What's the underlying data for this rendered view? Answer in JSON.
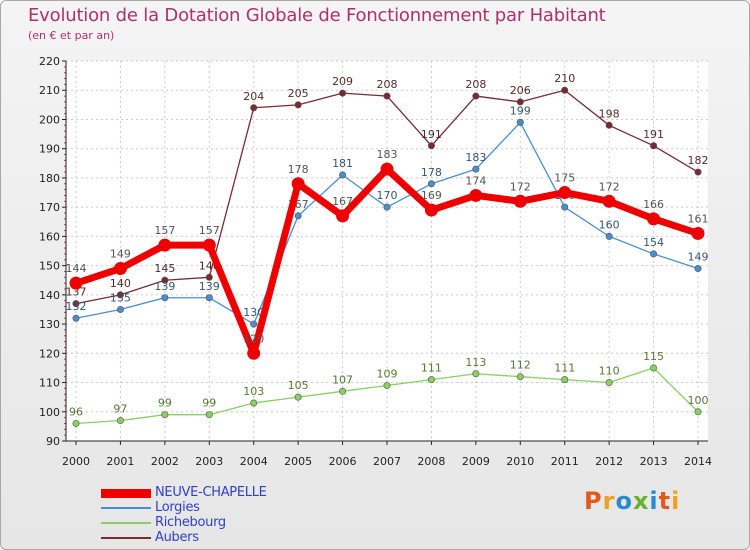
{
  "title": "Evolution de la Dotation Globale de Fonctionnement par Habitant",
  "subtitle": "(en € et par an)",
  "logo": {
    "text": "Proxiti",
    "colors": [
      "#e05a1a",
      "#f0a020",
      "#2a8ad0",
      "#6ab030",
      "#2a8ad0",
      "#e05a1a",
      "#f0a020"
    ]
  },
  "chart_data": {
    "type": "line",
    "x": [
      "2000",
      "2001",
      "2002",
      "2003",
      "2004",
      "2005",
      "2006",
      "2007",
      "2008",
      "2009",
      "2010",
      "2011",
      "2012",
      "2013",
      "2014"
    ],
    "ylim": [
      90,
      220
    ],
    "yticks": [
      90,
      100,
      110,
      120,
      130,
      140,
      150,
      160,
      170,
      180,
      190,
      200,
      210,
      220
    ],
    "grid": true,
    "legend_position": "bottom-left",
    "series": [
      {
        "name": "Aubers",
        "color": "#7a2a32",
        "values": [
          137,
          140,
          145,
          146,
          204,
          205,
          209,
          208,
          191,
          208,
          206,
          210,
          198,
          191,
          182
        ]
      },
      {
        "name": "Lorgies",
        "color": "#4a8ed0",
        "values": [
          132,
          135,
          139,
          139,
          130,
          167,
          181,
          170,
          178,
          183,
          199,
          170,
          160,
          154,
          149
        ]
      },
      {
        "name": "Richebourg",
        "color": "#88d060",
        "values": [
          96,
          97,
          99,
          99,
          103,
          105,
          107,
          109,
          111,
          113,
          112,
          111,
          110,
          115,
          100
        ]
      },
      {
        "name": "NEUVE-CHAPELLE",
        "color": "#ee0000",
        "values": [
          144,
          149,
          157,
          157,
          120,
          178,
          167,
          183,
          169,
          174,
          172,
          175,
          172,
          166,
          161
        ]
      }
    ],
    "legend": [
      "NEUVE-CHAPELLE",
      "Lorgies",
      "Richebourg",
      "Aubers"
    ]
  }
}
